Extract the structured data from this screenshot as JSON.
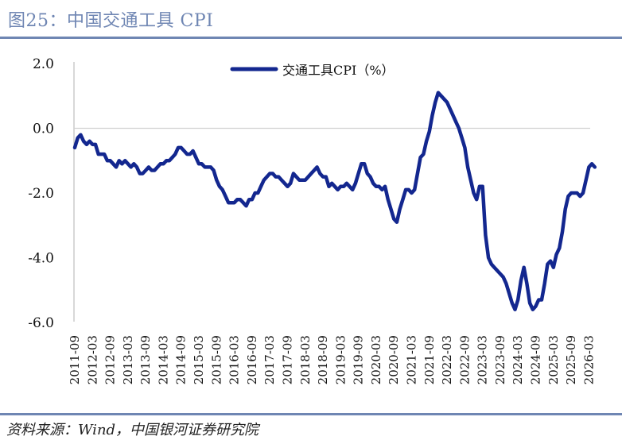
{
  "figure": {
    "title": "图25：中国交通工具 CPI",
    "source": "资料来源：Wind，中国银河证券研究院"
  },
  "colors": {
    "accent": "#6f86b3",
    "series": "#13278f",
    "axis": "#bfbfbf"
  },
  "chart_data": {
    "type": "line",
    "title": "",
    "xlabel": "",
    "ylabel": "",
    "ylim": [
      -6.0,
      2.0
    ],
    "yticks": [
      "2.0",
      "0.0",
      "-2.0",
      "-4.0",
      "-6.0"
    ],
    "ytick_values": [
      2,
      0,
      -2,
      -4,
      -6
    ],
    "xticks": [
      "2011-09",
      "2012-03",
      "2012-09",
      "2013-03",
      "2013-09",
      "2014-03",
      "2014-09",
      "2015-03",
      "2015-09",
      "2016-03",
      "2016-09",
      "2017-03",
      "2017-09",
      "2018-03",
      "2018-09",
      "2019-03",
      "2019-09",
      "2020-03",
      "2020-09",
      "2021-03",
      "2021-09",
      "2022-03",
      "2022-09",
      "2023-03",
      "2023-09",
      "2024-03",
      "2024-09",
      "2025-03",
      "2025-09",
      "2026-03"
    ],
    "legend": {
      "position": "top-center",
      "label": "交通工具CPI（%）"
    },
    "grid": false,
    "series": [
      {
        "name": "交通工具CPI（%）",
        "color": "#13278f",
        "x_start": "2011-09",
        "frequency": "monthly",
        "values": [
          -0.6,
          -0.3,
          -0.2,
          -0.4,
          -0.5,
          -0.4,
          -0.5,
          -0.5,
          -0.8,
          -0.8,
          -0.8,
          -1.0,
          -1.0,
          -1.1,
          -1.2,
          -1.0,
          -1.1,
          -1.0,
          -1.1,
          -1.2,
          -1.1,
          -1.2,
          -1.4,
          -1.4,
          -1.3,
          -1.2,
          -1.3,
          -1.3,
          -1.2,
          -1.1,
          -1.1,
          -1.0,
          -1.0,
          -0.9,
          -0.8,
          -0.6,
          -0.6,
          -0.7,
          -0.8,
          -0.8,
          -0.7,
          -0.9,
          -1.1,
          -1.1,
          -1.2,
          -1.2,
          -1.2,
          -1.3,
          -1.6,
          -1.8,
          -1.9,
          -2.1,
          -2.3,
          -2.3,
          -2.3,
          -2.2,
          -2.2,
          -2.3,
          -2.4,
          -2.2,
          -2.2,
          -2.0,
          -2.0,
          -1.8,
          -1.6,
          -1.5,
          -1.4,
          -1.4,
          -1.5,
          -1.5,
          -1.6,
          -1.7,
          -1.8,
          -1.7,
          -1.4,
          -1.5,
          -1.6,
          -1.6,
          -1.6,
          -1.5,
          -1.4,
          -1.3,
          -1.2,
          -1.4,
          -1.5,
          -1.5,
          -1.8,
          -1.7,
          -1.8,
          -1.9,
          -1.8,
          -1.8,
          -1.7,
          -1.8,
          -1.9,
          -1.7,
          -1.4,
          -1.1,
          -1.1,
          -1.4,
          -1.5,
          -1.7,
          -1.8,
          -1.8,
          -1.9,
          -1.8,
          -2.2,
          -2.5,
          -2.8,
          -2.9,
          -2.5,
          -2.2,
          -1.9,
          -1.9,
          -2.0,
          -1.9,
          -1.4,
          -0.9,
          -0.8,
          -0.4,
          -0.1,
          0.4,
          0.8,
          1.1,
          1.0,
          0.9,
          0.8,
          0.6,
          0.4,
          0.2,
          0.0,
          -0.3,
          -0.6,
          -1.2,
          -1.6,
          -2.0,
          -2.2,
          -1.8,
          -1.8,
          -3.3,
          -4.0,
          -4.2,
          -4.3,
          -4.4,
          -4.5,
          -4.6,
          -4.8,
          -5.1,
          -5.4,
          -5.6,
          -5.3,
          -4.7,
          -4.3,
          -4.8,
          -5.4,
          -5.6,
          -5.5,
          -5.3,
          -5.3,
          -4.8,
          -4.2,
          -4.1,
          -4.3,
          -3.9,
          -3.7,
          -3.2,
          -2.5,
          -2.1,
          -2.0,
          -2.0,
          -2.0,
          -2.1,
          -2.0,
          -1.6,
          -1.2,
          -1.1,
          -1.2
        ]
      }
    ]
  }
}
